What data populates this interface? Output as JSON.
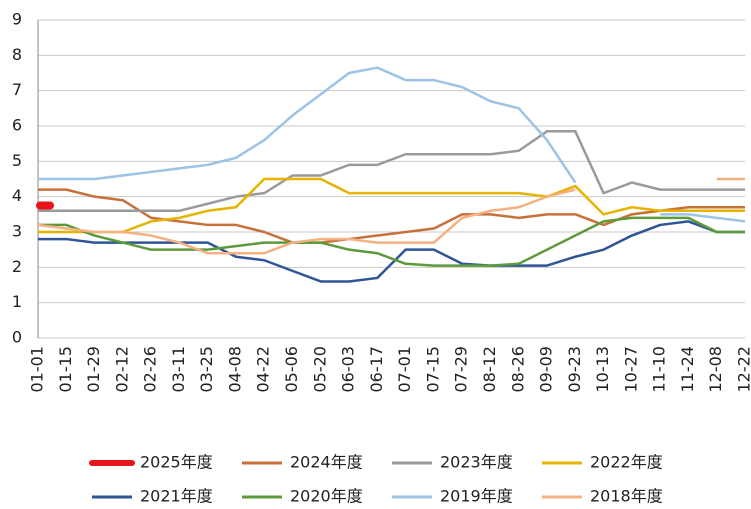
{
  "chart_data": {
    "type": "line",
    "categories": [
      "01-01",
      "01-15",
      "01-29",
      "02-12",
      "02-26",
      "03-11",
      "03-25",
      "04-08",
      "04-22",
      "05-06",
      "05-20",
      "06-03",
      "06-17",
      "07-01",
      "07-15",
      "07-29",
      "08-12",
      "08-26",
      "09-09",
      "09-23",
      "10-13",
      "10-27",
      "11-10",
      "11-24",
      "12-08",
      "12-22"
    ],
    "series": [
      {
        "name": "2025年度",
        "color": "#e8141b",
        "values": [
          3.75,
          null,
          null,
          null,
          null,
          null,
          null,
          null,
          null,
          null,
          null,
          null,
          null,
          null,
          null,
          null,
          null,
          null,
          null,
          null,
          null,
          null,
          null,
          null,
          null,
          null
        ]
      },
      {
        "name": "2024年度",
        "color": "#c8703a",
        "values": [
          4.2,
          4.2,
          4.0,
          3.9,
          3.4,
          3.3,
          3.2,
          3.2,
          3.0,
          2.7,
          2.7,
          2.8,
          2.9,
          3.0,
          3.1,
          3.5,
          3.5,
          3.4,
          3.5,
          3.5,
          3.2,
          3.5,
          3.6,
          3.7,
          3.7,
          3.7
        ]
      },
      {
        "name": "2023年度",
        "color": "#9a9a9a",
        "values": [
          3.6,
          3.6,
          3.6,
          3.6,
          3.6,
          3.6,
          3.8,
          4.0,
          4.1,
          4.6,
          4.6,
          4.9,
          4.9,
          5.2,
          5.2,
          5.2,
          5.2,
          5.3,
          5.85,
          5.85,
          4.1,
          4.4,
          4.2,
          4.2,
          4.2,
          4.2
        ]
      },
      {
        "name": "2022年度",
        "color": "#e6b400",
        "values": [
          3.0,
          3.0,
          3.0,
          3.0,
          3.3,
          3.4,
          3.6,
          3.7,
          4.5,
          4.5,
          4.5,
          4.1,
          4.1,
          4.1,
          4.1,
          4.1,
          4.1,
          4.1,
          4.0,
          4.3,
          3.5,
          3.7,
          3.6,
          3.6,
          3.6,
          3.6
        ]
      },
      {
        "name": "2021年度",
        "color": "#2f5597",
        "values": [
          2.8,
          2.8,
          2.7,
          2.7,
          2.7,
          2.7,
          2.7,
          2.3,
          2.2,
          1.9,
          1.6,
          1.6,
          1.7,
          2.5,
          2.5,
          2.1,
          2.05,
          2.05,
          2.05,
          2.3,
          2.5,
          2.9,
          3.2,
          3.3,
          3.0,
          3.0
        ]
      },
      {
        "name": "2020年度",
        "color": "#5b9b3a",
        "values": [
          3.2,
          3.2,
          2.9,
          2.7,
          2.5,
          2.5,
          2.5,
          2.6,
          2.7,
          2.7,
          2.7,
          2.5,
          2.4,
          2.1,
          2.05,
          2.05,
          2.05,
          2.1,
          2.5,
          2.9,
          3.3,
          3.4,
          3.4,
          3.4,
          3.0,
          3.0
        ]
      },
      {
        "name": "2019年度",
        "color": "#9dc3e6",
        "values": [
          4.5,
          4.5,
          4.5,
          4.6,
          4.7,
          4.8,
          4.9,
          5.1,
          5.6,
          6.3,
          6.9,
          7.5,
          7.65,
          7.3,
          7.3,
          7.1,
          6.7,
          6.5,
          5.6,
          4.4,
          null,
          null,
          3.5,
          3.5,
          3.4,
          3.3
        ]
      },
      {
        "name": "2018年度",
        "color": "#f4b183",
        "values": [
          3.2,
          3.1,
          3.0,
          3.0,
          2.9,
          2.7,
          2.4,
          2.4,
          2.4,
          2.7,
          2.8,
          2.8,
          2.7,
          2.7,
          2.7,
          3.4,
          3.6,
          3.7,
          4.0,
          4.2,
          null,
          null,
          null,
          null,
          4.5,
          4.5
        ]
      }
    ],
    "ylim": [
      0,
      9
    ],
    "yticks": [
      0,
      1,
      2,
      3,
      4,
      5,
      6,
      7,
      8,
      9
    ],
    "grid": true
  }
}
